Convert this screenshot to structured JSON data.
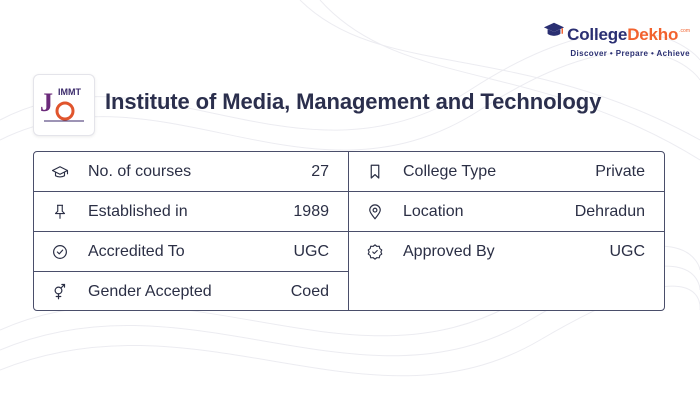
{
  "brand": {
    "name_part1": "College",
    "name_part2": "Dekho",
    "domain_suffix": ".com",
    "tagline": "Discover • Prepare • Achieve",
    "colors": {
      "navy": "#2a2f72",
      "orange": "#f2622e"
    }
  },
  "college": {
    "logo_text": "IMMT",
    "name": "Institute of Media, Management and Technology"
  },
  "details": {
    "left": [
      {
        "icon": "graduation-cap-icon",
        "label": "No. of courses",
        "value": "27"
      },
      {
        "icon": "pin-icon",
        "label": "Established in",
        "value": "1989"
      },
      {
        "icon": "check-circle-icon",
        "label": "Accredited To",
        "value": "UGC"
      },
      {
        "icon": "gender-icon",
        "label": "Gender Accepted",
        "value": "Coed"
      }
    ],
    "right": [
      {
        "icon": "bookmark-icon",
        "label": "College Type",
        "value": "Private"
      },
      {
        "icon": "location-icon",
        "label": "Location",
        "value": "Dehradun"
      },
      {
        "icon": "approved-badge-icon",
        "label": "Approved By",
        "value": "UGC"
      }
    ]
  }
}
